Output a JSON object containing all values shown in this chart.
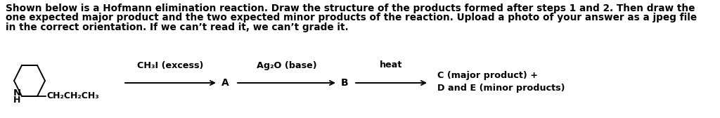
{
  "background_color": "#ffffff",
  "text_color": "#000000",
  "paragraph_line1": "Shown below is a Hofmann elimination reaction. Draw the structure of the products formed after steps 1 and 2. Then draw the",
  "paragraph_line2": "one expected major product and the two expected minor products of the reaction. Upload a photo of your answer as a jpeg file",
  "paragraph_line3": "in the correct orientation. If we can’t read it, we can’t grade it.",
  "paragraph_fontsize": 9.8,
  "paragraph_fontweight": "bold",
  "step1_label": "CH₃I (excess)",
  "step2_label": "Ag₂O (base)",
  "step3_label": "heat",
  "A_label": "A",
  "B_label": "B",
  "result_line1": "C (major product) +",
  "result_line2": "D and E (minor products)",
  "ch2ch2ch3": "CH₂CH₂CH₃",
  "N_label": "N",
  "H_label": "H"
}
